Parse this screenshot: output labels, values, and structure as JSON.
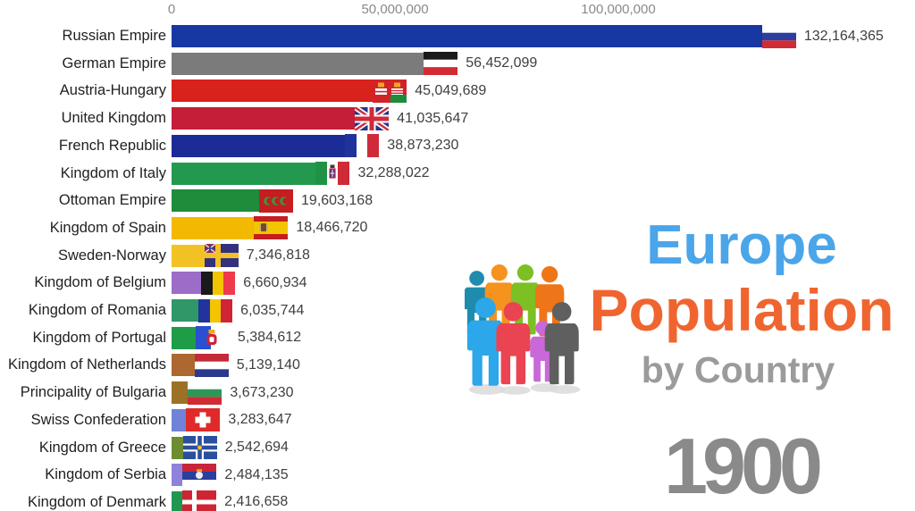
{
  "title_block": {
    "line1": "Europe",
    "line2": "Population",
    "line3": "by Country",
    "line1_color": "#4BA5E9",
    "line2_color": "#F0652F",
    "line3_color": "#9B9B9B"
  },
  "year": {
    "label": "1900",
    "color": "#8A8A8A"
  },
  "chart_data": {
    "type": "bar",
    "orientation": "horizontal",
    "title": "Europe Population by Country",
    "year": "1900",
    "x_axis": {
      "ticks": [
        "0",
        "50,000,000",
        "100,000,000"
      ],
      "tick_values": [
        0,
        50000000,
        100000000
      ],
      "range": [
        0,
        140000000
      ],
      "grid": false
    },
    "categories": [
      "Russian Empire",
      "German Empire",
      "Austria-Hungary",
      "United Kingdom",
      "French Republic",
      "Kingdom of Italy",
      "Ottoman Empire",
      "Kingdom of Spain",
      "Sweden-Norway",
      "Kingdom of Belgium",
      "Kingdom of Romania",
      "Kingdom of Portugal",
      "Kingdom of Netherlands",
      "Principality of Bulgaria",
      "Swiss Confederation",
      "Kingdom of Greece",
      "Kingdom of Serbia",
      "Kingdom of Denmark"
    ],
    "values": [
      132164365,
      56452099,
      45049689,
      41035647,
      38873230,
      32288022,
      19603168,
      18466720,
      7346818,
      6660934,
      6035744,
      5384612,
      5139140,
      3673230,
      3283647,
      2542694,
      2484135,
      2416658
    ],
    "value_labels": [
      "132,164,365",
      "56,452,099",
      "45,049,689",
      "41,035,647",
      "38,873,230",
      "32,288,022",
      "19,603,168",
      "18,466,720",
      "7,346,818",
      "6,660,934",
      "6,035,744",
      "5,384,612",
      "5,139,140",
      "3,673,230",
      "3,283,647",
      "2,542,694",
      "2,484,135",
      "2,416,658"
    ],
    "bar_colors": [
      "#1737A3",
      "#7B7B7B",
      "#D8221C",
      "#C51E38",
      "#1B2C96",
      "#23994F",
      "#1E8C3A",
      "#F2B900",
      "#F2C224",
      "#9C6CC8",
      "#2F9768",
      "#1F9C46",
      "#AC6830",
      "#9C7126",
      "#7083D6",
      "#6E8D31",
      "#8E82DB",
      "#1F9750"
    ],
    "flags": [
      "russia-empire",
      "german-empire",
      "austria-hungary",
      "united-kingdom",
      "france",
      "italy-kingdom",
      "ottoman-empire",
      "spain",
      "sweden-norway",
      "belgium",
      "romania",
      "portugal-kingdom",
      "netherlands",
      "bulgaria",
      "switzerland",
      "greece-kingdom",
      "serbia-kingdom",
      "denmark"
    ]
  },
  "icons": {
    "people_group": "people-group-icon",
    "people_colors": [
      "#1F8CAE",
      "#F6921E",
      "#7CC024",
      "#EE7518",
      "#2BA7EA",
      "#EA4452",
      "#C968D8",
      "#5F5F5F"
    ]
  }
}
